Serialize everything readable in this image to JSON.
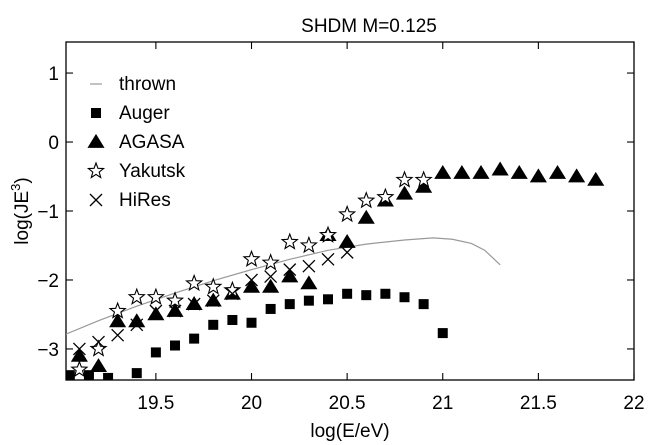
{
  "chart_data": {
    "type": "scatter",
    "title": "SHDM M=0.125",
    "xlabel": "log(E/eV)",
    "ylabel_main": "log(JE",
    "ylabel_sup": "3",
    "ylabel_close": ")",
    "xlim": [
      19.03,
      22.0
    ],
    "ylim": [
      -3.45,
      1.45
    ],
    "xticks": [
      19.5,
      20,
      20.5,
      21,
      21.5,
      22
    ],
    "xtick_labels": [
      "19.5",
      "20",
      "20.5",
      "21",
      "21.5",
      "22"
    ],
    "yticks": [
      -3,
      -2,
      -1,
      0,
      1
    ],
    "ytick_labels": [
      "−3",
      "−2",
      "−1",
      "0",
      "1"
    ],
    "grid": false,
    "legend_position": "top-left",
    "series": [
      {
        "name": "thrown",
        "marker": "line",
        "color": "#999999",
        "x": [
          19.0,
          19.2,
          19.4,
          19.6,
          19.8,
          20.0,
          20.2,
          20.4,
          20.6,
          20.8,
          20.95,
          21.05,
          21.15,
          21.22,
          21.3
        ],
        "y": [
          -2.82,
          -2.59,
          -2.38,
          -2.19,
          -2.01,
          -1.85,
          -1.7,
          -1.57,
          -1.48,
          -1.42,
          -1.39,
          -1.41,
          -1.47,
          -1.57,
          -1.78
        ]
      },
      {
        "name": "Auger",
        "marker": "square",
        "color": "#000000",
        "x": [
          19.05,
          19.15,
          19.25,
          19.4,
          19.5,
          19.6,
          19.7,
          19.8,
          19.9,
          20.0,
          20.1,
          20.2,
          20.3,
          20.4,
          20.5,
          20.6,
          20.7,
          20.8,
          20.9,
          21.0
        ],
        "y": [
          -3.38,
          -3.38,
          -3.42,
          -3.35,
          -3.05,
          -2.95,
          -2.85,
          -2.65,
          -2.58,
          -2.62,
          -2.42,
          -2.35,
          -2.3,
          -2.28,
          -2.2,
          -2.22,
          -2.2,
          -2.25,
          -2.35,
          -2.77
        ]
      },
      {
        "name": "AGASA",
        "marker": "triangle",
        "color": "#000000",
        "x": [
          19.1,
          19.2,
          19.3,
          19.4,
          19.5,
          19.6,
          19.7,
          19.8,
          19.9,
          20.0,
          20.1,
          20.2,
          20.3,
          20.4,
          20.5,
          20.6,
          20.7,
          20.8,
          20.9,
          21.0,
          21.1,
          21.2,
          21.3,
          21.4,
          21.5,
          21.6,
          21.7,
          21.8
        ],
        "y": [
          -3.1,
          -3.25,
          -2.6,
          -2.6,
          -2.5,
          -2.45,
          -2.35,
          -2.3,
          -2.2,
          -2.1,
          -2.1,
          -1.95,
          -2.05,
          -1.35,
          -1.45,
          -1.1,
          -0.85,
          -0.75,
          -0.65,
          -0.45,
          -0.45,
          -0.45,
          -0.4,
          -0.45,
          -0.5,
          -0.45,
          -0.5,
          -0.55
        ]
      },
      {
        "name": "Yakutsk",
        "marker": "star",
        "color": "#000000",
        "x": [
          19.1,
          19.2,
          19.3,
          19.4,
          19.5,
          19.6,
          19.7,
          19.8,
          19.9,
          20.0,
          20.1,
          20.2,
          20.3,
          20.4,
          20.5,
          20.6,
          20.7,
          20.8,
          20.9
        ],
        "y": [
          -3.3,
          -3.0,
          -2.45,
          -2.25,
          -2.25,
          -2.3,
          -2.05,
          -2.1,
          -2.15,
          -1.7,
          -1.75,
          -1.45,
          -1.5,
          -1.35,
          -1.05,
          -0.85,
          -0.8,
          -0.55,
          -0.55
        ]
      },
      {
        "name": "HiRes",
        "marker": "x",
        "color": "#000000",
        "x": [
          19.0,
          19.1,
          19.2,
          19.3,
          19.4,
          19.5,
          19.6,
          19.7,
          19.8,
          19.9,
          20.0,
          20.1,
          20.2,
          20.3,
          20.4,
          20.5
        ],
        "y": [
          -3.05,
          -3.0,
          -2.9,
          -2.8,
          -2.65,
          -2.45,
          -2.45,
          -2.35,
          -2.3,
          -2.2,
          -2.0,
          -1.95,
          -1.85,
          -1.8,
          -1.7,
          -1.6
        ]
      }
    ]
  }
}
